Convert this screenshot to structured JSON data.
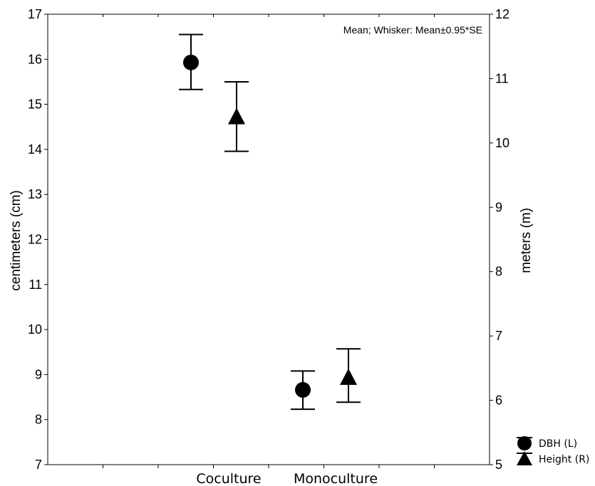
{
  "chart_data": {
    "type": "scatter",
    "note": "Mean; Whisker: Mean±0.95*SE",
    "categories": [
      "Coculture",
      "Monoculture"
    ],
    "y_left": {
      "label": "centimeters (cm)",
      "ylim": [
        7,
        17
      ],
      "ticks": [
        7,
        8,
        9,
        10,
        11,
        12,
        13,
        14,
        15,
        16,
        17
      ]
    },
    "y_right": {
      "label": "meters (m)",
      "ylim": [
        5,
        12
      ],
      "ticks": [
        5,
        6,
        7,
        8,
        9,
        10,
        11,
        12
      ]
    },
    "series": [
      {
        "name": "DBH (L)",
        "marker": "circle",
        "axis": "left",
        "values": [
          15.93,
          8.66
        ],
        "lower": [
          15.33,
          8.23
        ],
        "upper": [
          16.55,
          9.08
        ]
      },
      {
        "name": "Height (R)",
        "marker": "triangle",
        "axis": "right",
        "values": [
          10.4,
          6.35
        ],
        "lower": [
          9.87,
          5.97
        ],
        "upper": [
          10.95,
          6.8
        ]
      }
    ],
    "legend_position": "bottom-right"
  }
}
